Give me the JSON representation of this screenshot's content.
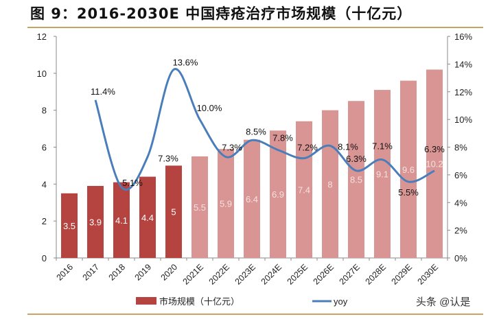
{
  "chart_data": {
    "type": "bar+line",
    "title": "图 9：2016-2030E 中国痔疮治疗市场规模（十亿元）",
    "categories": [
      "2016",
      "2017",
      "2018",
      "2019",
      "2020",
      "2021E",
      "2022E",
      "2023E",
      "2024E",
      "2025E",
      "2026E",
      "2027E",
      "2028E",
      "2029E",
      "2030E"
    ],
    "series": [
      {
        "name": "市场规模（十亿元）",
        "type": "bar",
        "axis": "left",
        "values": [
          3.5,
          3.9,
          4.1,
          4.4,
          5,
          5.5,
          5.9,
          6.4,
          6.9,
          7.4,
          8,
          8.5,
          9.1,
          9.6,
          10.2
        ],
        "labels": [
          "3.5",
          "3.9",
          "4.1",
          "4.4",
          "5",
          "5.5",
          "5.9",
          "6.4",
          "6.9",
          "7.4",
          "8",
          "8.5",
          "9.1",
          "9.6",
          "10.2"
        ],
        "color_actual": "#B5433F",
        "color_forecast": "#D99594"
      },
      {
        "name": "yoy",
        "type": "line",
        "axis": "right",
        "values": [
          null,
          11.4,
          5.1,
          7.3,
          13.6,
          10.0,
          7.3,
          8.5,
          7.8,
          7.2,
          8.1,
          6.3,
          7.1,
          5.5,
          6.3
        ],
        "labels": [
          null,
          "11.4%",
          "5.1%",
          "7.3%",
          "13.6%",
          "10.0%",
          "7.3%",
          "8.5%",
          "7.8%",
          "7.2%",
          "8.1%",
          "6.3%",
          "7.1%",
          "5.5%",
          "6.3%"
        ],
        "color": "#4A7EBB"
      }
    ],
    "left_axis": {
      "ylim": [
        0,
        12
      ],
      "ticks": [
        "0",
        "2",
        "4",
        "6",
        "8",
        "10",
        "12"
      ]
    },
    "right_axis": {
      "ylim": [
        0,
        16
      ],
      "ticks": [
        "0%",
        "2%",
        "4%",
        "6%",
        "8%",
        "10%",
        "12%",
        "14%",
        "16%"
      ]
    },
    "legend": {
      "placement": "bottom",
      "items": [
        "市场规模（十亿元）",
        "yoy"
      ]
    },
    "grid": false
  },
  "watermark": "头条 @认是",
  "rule_color": "#C8A464"
}
